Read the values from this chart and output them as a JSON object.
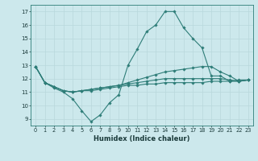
{
  "xlabel": "Humidex (Indice chaleur)",
  "xlim": [
    -0.5,
    23.5
  ],
  "ylim": [
    8.5,
    17.5
  ],
  "yticks": [
    9,
    10,
    11,
    12,
    13,
    14,
    15,
    16,
    17
  ],
  "xticks": [
    0,
    1,
    2,
    3,
    4,
    5,
    6,
    7,
    8,
    9,
    10,
    11,
    12,
    13,
    14,
    15,
    16,
    17,
    18,
    19,
    20,
    21,
    22,
    23
  ],
  "bg_color": "#cce8ec",
  "grid_color": "#b8d8dc",
  "line_color": "#2e7d78",
  "series": [
    [
      12.9,
      11.7,
      11.3,
      11.0,
      10.5,
      9.6,
      8.8,
      9.3,
      10.2,
      10.8,
      13.0,
      14.2,
      15.5,
      16.0,
      17.0,
      17.0,
      15.8,
      15.0,
      14.3,
      12.2,
      12.2,
      11.8,
      11.9,
      11.9
    ],
    [
      12.9,
      11.7,
      11.4,
      11.1,
      11.0,
      11.1,
      11.2,
      11.3,
      11.4,
      11.5,
      11.7,
      11.9,
      12.1,
      12.3,
      12.5,
      12.6,
      12.7,
      12.8,
      12.9,
      12.9,
      12.5,
      12.2,
      11.8,
      11.9
    ],
    [
      12.9,
      11.7,
      11.4,
      11.1,
      11.0,
      11.1,
      11.2,
      11.3,
      11.4,
      11.5,
      11.6,
      11.7,
      11.8,
      11.9,
      12.0,
      12.0,
      12.0,
      12.0,
      12.0,
      12.0,
      12.0,
      11.9,
      11.8,
      11.9
    ],
    [
      12.9,
      11.7,
      11.4,
      11.1,
      11.0,
      11.1,
      11.1,
      11.2,
      11.3,
      11.4,
      11.5,
      11.5,
      11.6,
      11.6,
      11.7,
      11.7,
      11.7,
      11.7,
      11.7,
      11.8,
      11.8,
      11.8,
      11.8,
      11.9
    ]
  ]
}
